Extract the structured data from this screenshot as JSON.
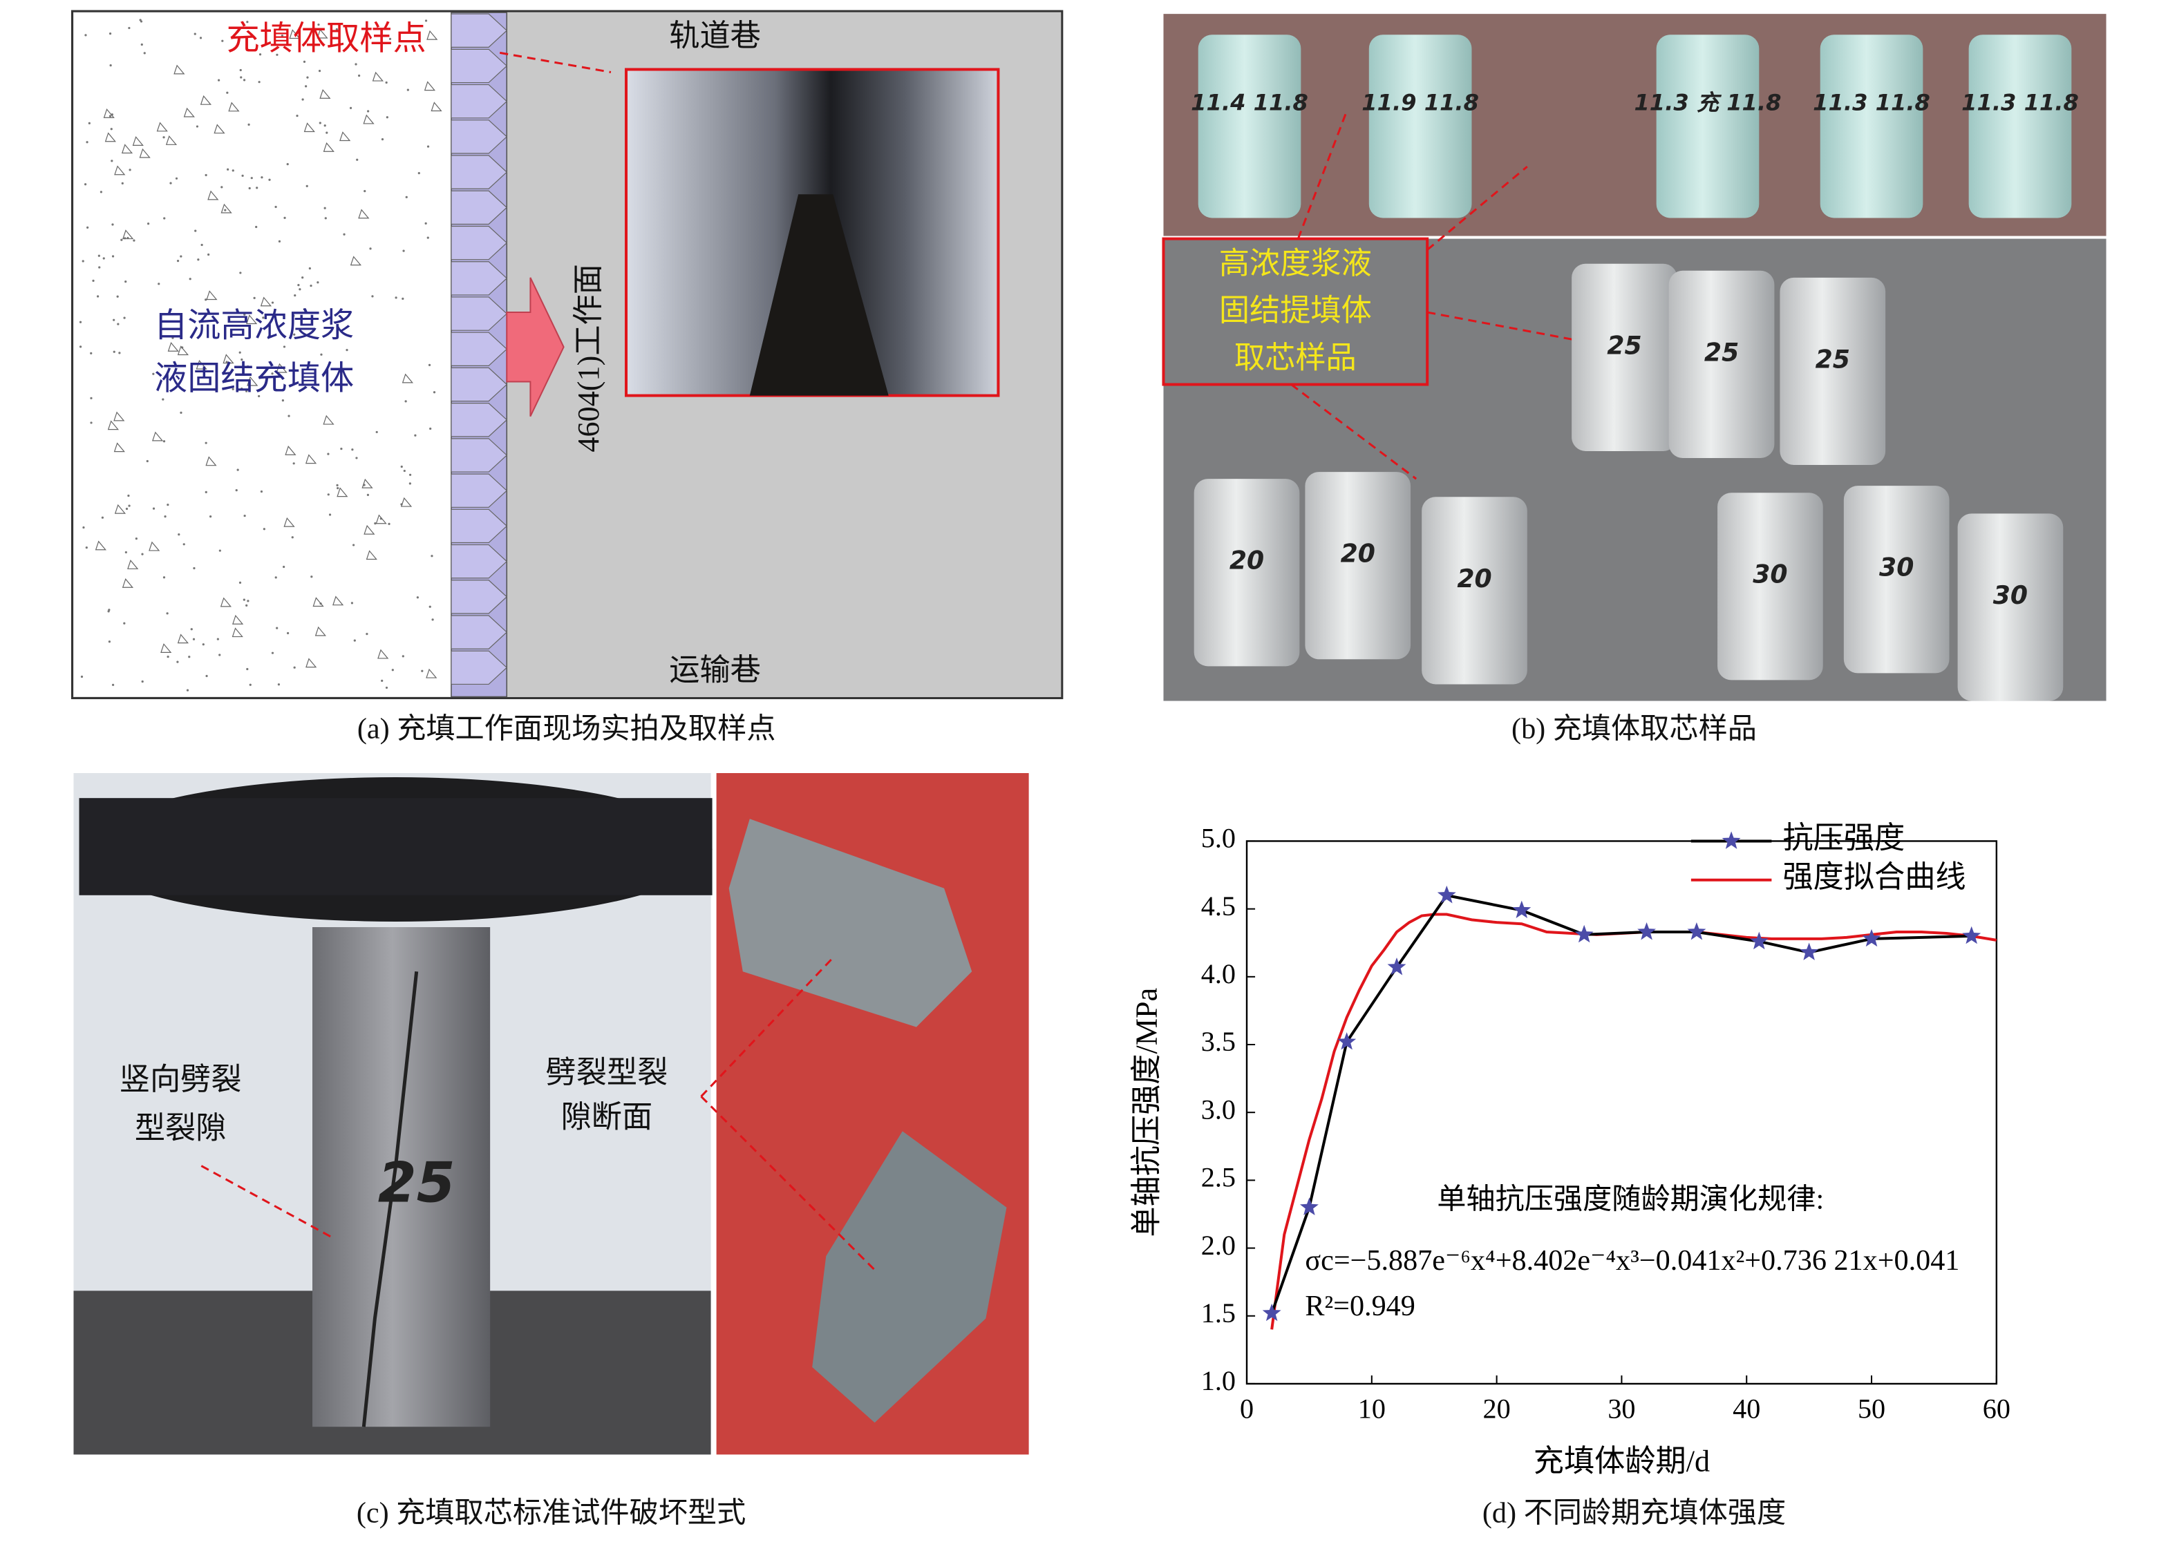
{
  "panels": {
    "a": {
      "caption": "(a) 充填工作面现场实拍及取样点",
      "sample_point": "充填体取样点",
      "top_roadway": "轨道巷",
      "bottom_roadway": "运输巷",
      "fill_body": [
        "自流高浓度浆",
        "液固结充填体"
      ],
      "face": "4604(1)工作面"
    },
    "b": {
      "caption": "(b) 充填体取芯样品",
      "label": [
        "高浓度浆液",
        "固结提填体",
        "取芯样品"
      ],
      "top_marks": [
        "11.4 11.8",
        "11.9 11.8",
        "11.3 充 11.8",
        "11.3 11.8",
        "11.3 11.8"
      ],
      "bottom_marks": [
        "25",
        "25",
        "25",
        "20",
        "20",
        "20",
        "30",
        "30",
        "30"
      ]
    },
    "c": {
      "caption": "(c) 充填取芯标准试件破坏型式",
      "left_label": [
        "竖向劈裂",
        "型裂隙"
      ],
      "right_label": [
        "劈裂型裂",
        "隙断面"
      ],
      "specimen_mark": "25"
    },
    "d": {
      "caption": "(d) 不同龄期充填体强度"
    }
  },
  "chart_data": {
    "type": "line",
    "xlabel": "充填体龄期/d",
    "ylabel": "单轴抗压强度/MPa",
    "xlim": [
      0,
      60
    ],
    "xticks": [
      0,
      10,
      20,
      30,
      40,
      50,
      60
    ],
    "ylim": [
      1.0,
      5.0
    ],
    "yticks": [
      {
        "value": 1.0,
        "label": "1.0"
      },
      {
        "value": 1.5,
        "label": "1.5"
      },
      {
        "value": 2.0,
        "label": "2.0"
      },
      {
        "value": 2.5,
        "label": "2.5"
      },
      {
        "value": 3.0,
        "label": "3.0"
      },
      {
        "value": 3.5,
        "label": "3.5"
      },
      {
        "value": 4.0,
        "label": "4.0"
      },
      {
        "value": 4.5,
        "label": "4.5"
      },
      {
        "value": 5.0,
        "label": "5.0"
      }
    ],
    "legend": "upper right",
    "annotations": [
      "单轴抗压强度随龄期演化规律:",
      "σc=−5.887e⁻⁶x⁴+8.402e⁻⁴x³−0.041x²+0.736 21x+0.041",
      "R²=0.949"
    ],
    "series": [
      {
        "name": "抗压强度",
        "color": "#000000",
        "marker_color": "#4b4ba8",
        "marker": "star",
        "x": [
          2,
          5,
          8,
          12,
          16,
          22,
          27,
          32,
          36,
          41,
          45,
          50,
          58
        ],
        "values": [
          1.52,
          2.3,
          3.52,
          4.07,
          4.6,
          4.49,
          4.31,
          4.33,
          4.33,
          4.26,
          4.18,
          4.28,
          4.3
        ]
      },
      {
        "name": "强度拟合曲线",
        "color": "#e0151b",
        "marker": "none",
        "x": [
          2,
          3,
          4,
          5,
          6,
          7,
          8,
          9,
          10,
          11,
          12,
          13,
          14,
          15,
          16,
          18,
          20,
          22,
          24,
          26,
          28,
          30,
          32,
          34,
          36,
          38,
          40,
          42,
          44,
          46,
          48,
          50,
          52,
          54,
          56,
          58,
          60
        ],
        "values": [
          1.4,
          2.1,
          2.45,
          2.8,
          3.1,
          3.45,
          3.7,
          3.9,
          4.08,
          4.2,
          4.33,
          4.4,
          4.45,
          4.46,
          4.46,
          4.42,
          4.4,
          4.39,
          4.33,
          4.32,
          4.31,
          4.32,
          4.33,
          4.33,
          4.33,
          4.31,
          4.29,
          4.28,
          4.28,
          4.28,
          4.29,
          4.31,
          4.33,
          4.33,
          4.32,
          4.3,
          4.27
        ]
      }
    ]
  }
}
